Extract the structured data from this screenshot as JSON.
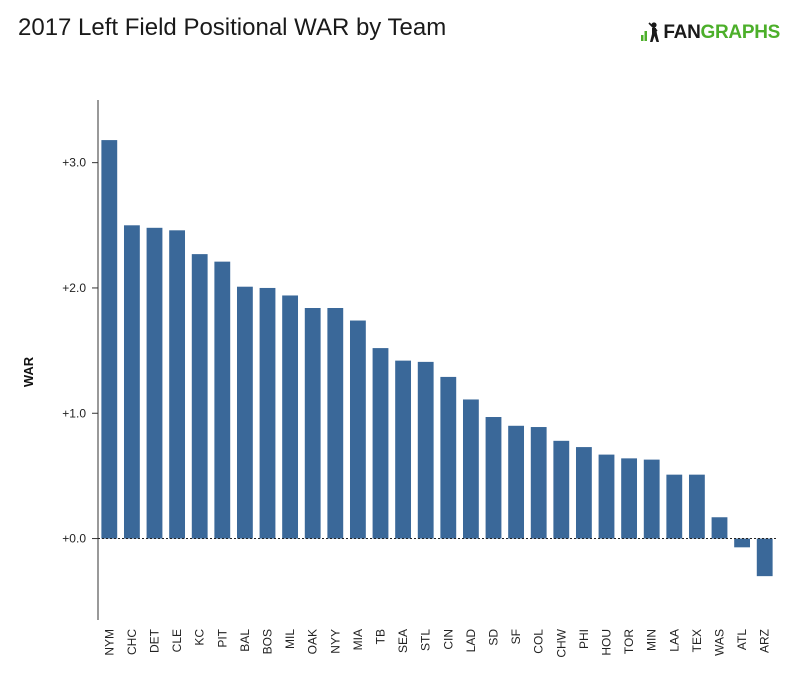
{
  "header": {
    "title": "2017 Left Field Positional WAR by Team",
    "logo_text_a": "FAN",
    "logo_text_b": "GRAPHS",
    "logo_colors": {
      "primary": "#1a1a1a",
      "accent": "#4caf2a"
    }
  },
  "chart_data": {
    "type": "bar",
    "title": "2017 Left Field Positional WAR by Team",
    "xlabel": "",
    "ylabel": "WAR",
    "ylim": [
      -0.65,
      3.5
    ],
    "yticks": [
      {
        "value": 0,
        "label": "+0.0"
      },
      {
        "value": 1,
        "label": "+1.0"
      },
      {
        "value": 2,
        "label": "+2.0"
      },
      {
        "value": 3,
        "label": "+3.0"
      }
    ],
    "bar_color": "#3a6899",
    "zero_line": "dotted",
    "grid": false,
    "categories": [
      "NYM",
      "CHC",
      "DET",
      "CLE",
      "KC",
      "PIT",
      "BAL",
      "BOS",
      "MIL",
      "OAK",
      "NYY",
      "MIA",
      "TB",
      "SEA",
      "STL",
      "CIN",
      "LAD",
      "SD",
      "SF",
      "COL",
      "CHW",
      "PHI",
      "HOU",
      "TOR",
      "MIN",
      "LAA",
      "TEX",
      "WAS",
      "ATL",
      "ARZ"
    ],
    "values": [
      3.18,
      2.5,
      2.48,
      2.46,
      2.27,
      2.21,
      2.01,
      2.0,
      1.94,
      1.84,
      1.84,
      1.74,
      1.52,
      1.42,
      1.41,
      1.29,
      1.11,
      0.97,
      0.9,
      0.89,
      0.78,
      0.73,
      0.67,
      0.64,
      0.63,
      0.51,
      0.51,
      0.17,
      -0.07,
      -0.3
    ]
  }
}
